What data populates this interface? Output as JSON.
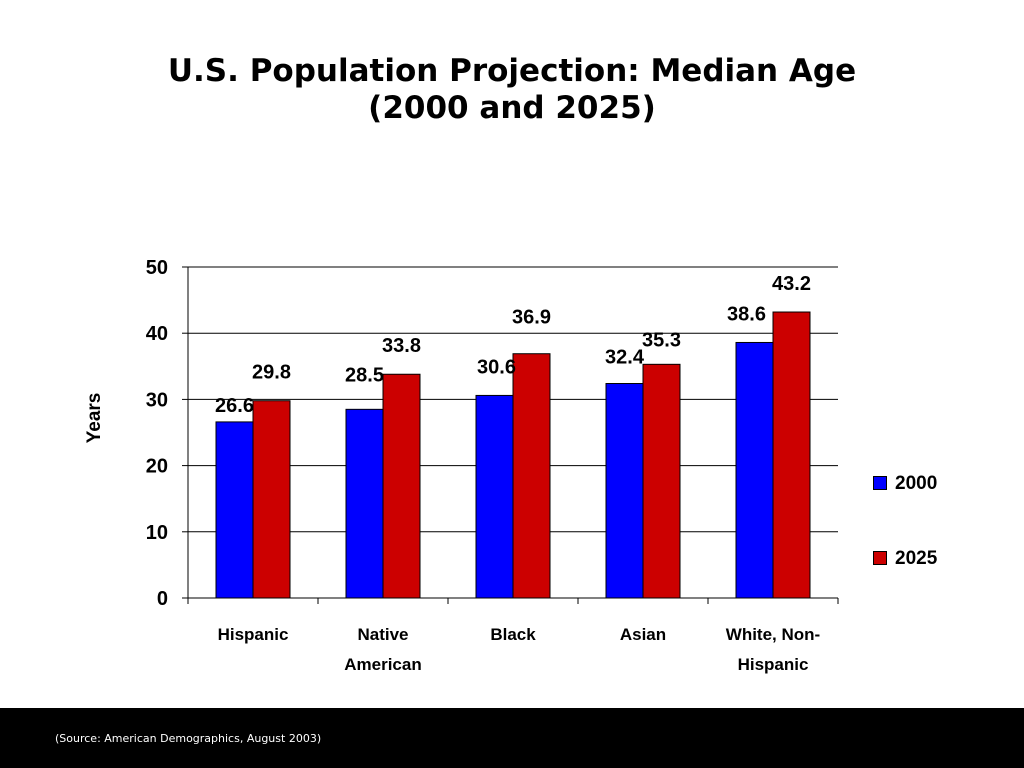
{
  "slide": {
    "title_line_1": "U.S. Population Projection: Median Age",
    "title_line_2": "(2000 and 2025)",
    "source": "(Source: American Demographics, August 2003)"
  },
  "colors": {
    "series_2000": "#0000ff",
    "series_2025": "#cc0000",
    "footer_bg": "#000000"
  },
  "chart_data": {
    "type": "bar",
    "title": "",
    "xlabel": "",
    "ylabel": "Years",
    "ylim": [
      0,
      50
    ],
    "yticks": [
      0,
      10,
      20,
      30,
      40,
      50
    ],
    "grid": true,
    "legend_position": "right",
    "categories": [
      [
        "Hispanic"
      ],
      [
        "Native",
        "American"
      ],
      [
        "Black"
      ],
      [
        "Asian"
      ],
      [
        "White, Non-",
        "Hispanic"
      ]
    ],
    "series": [
      {
        "name": "2000",
        "values": [
          26.6,
          28.5,
          30.6,
          32.4,
          38.6
        ],
        "labels": [
          "26.6",
          "28.5",
          "30.6",
          "32.4",
          "38.6"
        ]
      },
      {
        "name": "2025",
        "values": [
          29.8,
          33.8,
          36.9,
          35.3,
          43.2
        ],
        "labels": [
          "29.8",
          "33.8",
          "36.9",
          "35.3",
          "43.2"
        ]
      }
    ]
  }
}
